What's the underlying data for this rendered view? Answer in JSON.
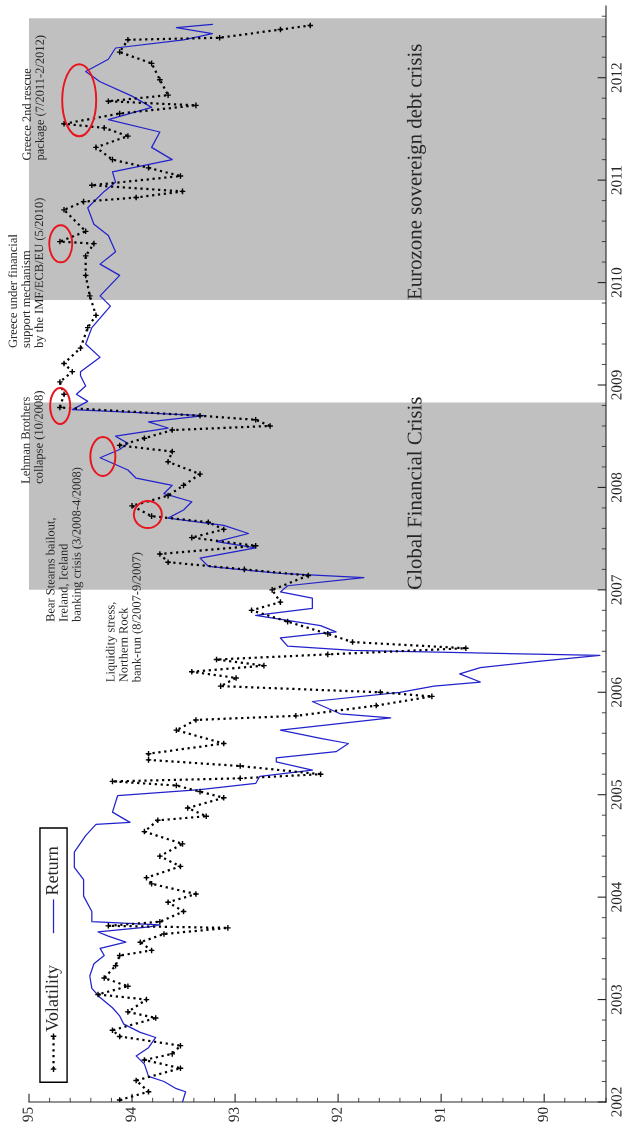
{
  "chart_data": {
    "type": "line",
    "ylim": [
      2002,
      2012.7
    ],
    "yticks": [
      2002,
      2003,
      2004,
      2005,
      2006,
      2007,
      2008,
      2009,
      2010,
      2011,
      2012
    ],
    "xlim": [
      95,
      89.4
    ],
    "xticks": [
      90,
      91,
      92,
      93,
      94,
      95
    ],
    "legend": "top left",
    "series": [
      {
        "name": "Volatility",
        "color": "#000000",
        "marker": "cross",
        "line_style": "dotted",
        "values": [
          2002.02,
          2002.1,
          2002.21,
          2002.33,
          2002.41,
          2002.47,
          2002.55,
          2002.64,
          2002.7,
          2002.82,
          2002.88,
          2003.0,
          2003.05,
          2003.13,
          2003.21,
          2003.33,
          2003.43,
          2003.48,
          2003.56,
          2003.64,
          2003.7,
          2003.72,
          2003.76,
          2003.86,
          2003.95,
          2004.03,
          2004.13,
          2004.19,
          2004.3,
          2004.4,
          2004.52,
          2004.64,
          2004.75,
          2004.79,
          2004.87,
          2004.97,
          2005.03,
          2005.09,
          2005.13,
          2005.16,
          2005.2,
          2005.28,
          2005.34,
          2005.4,
          2005.5,
          2005.63,
          2005.73,
          2005.77,
          2005.87,
          2005.96,
          2006.0,
          2006.06,
          2006.14,
          2006.2,
          2006.26,
          2006.32,
          2006.37,
          2006.43,
          2006.49,
          2006.57,
          2006.69,
          2006.8,
          2006.88,
          2007.0,
          2007.14,
          2007.2,
          2007.27,
          2007.35,
          2007.43,
          2007.51,
          2007.59,
          2007.66,
          2007.72,
          2007.82,
          2007.92,
          2008.02,
          2008.13,
          2008.25,
          2008.35,
          2008.41,
          2008.48,
          2008.56,
          2008.6,
          2008.66,
          2008.7,
          2008.78,
          2008.91,
          2009.03,
          2009.13,
          2009.21,
          2009.36,
          2009.56,
          2009.68,
          2009.87,
          2010.07,
          2010.26,
          2010.38,
          2010.4,
          2010.5,
          2010.71,
          2010.79,
          2010.83,
          2010.89,
          2010.95,
          2011.04,
          2011.12,
          2011.2,
          2011.32,
          2011.43,
          2011.51,
          2011.55,
          2011.65,
          2011.73,
          2011.77,
          2011.83,
          2011.98,
          2012.14,
          2012.25,
          2012.37,
          2012.39,
          2012.47,
          2012.51
        ],
        "x": [
          94.12,
          93.84,
          93.96,
          93.53,
          93.88,
          93.61,
          93.53,
          94.12,
          94.19,
          93.77,
          94.04,
          93.86,
          94.33,
          94.04,
          94.27,
          94.16,
          94.12,
          93.81,
          93.92,
          93.69,
          93.07,
          94.23,
          93.73,
          93.5,
          93.65,
          93.38,
          93.81,
          93.86,
          93.53,
          93.73,
          93.51,
          93.88,
          93.75,
          93.28,
          93.46,
          93.11,
          93.34,
          93.57,
          94.19,
          92.95,
          92.17,
          92.95,
          93.84,
          93.84,
          93.11,
          93.57,
          93.38,
          92.41,
          91.63,
          91.09,
          91.59,
          93.14,
          92.99,
          93.42,
          92.72,
          93.18,
          92.1,
          90.76,
          91.86,
          92.1,
          92.49,
          92.84,
          92.56,
          92.64,
          92.29,
          92.91,
          93.65,
          93.73,
          92.8,
          93.42,
          93.11,
          93.26,
          93.81,
          94.0,
          93.65,
          93.5,
          93.34,
          93.65,
          93.61,
          94.12,
          93.88,
          93.61,
          92.66,
          92.8,
          93.34,
          94.7,
          94.66,
          94.7,
          94.58,
          94.66,
          94.5,
          94.43,
          94.35,
          94.41,
          94.45,
          94.45,
          94.37,
          94.7,
          94.45,
          94.66,
          94.47,
          93.96,
          93.51,
          94.39,
          93.53,
          93.84,
          94.19,
          94.35,
          94.04,
          94.27,
          94.66,
          94.12,
          93.38,
          94.23,
          93.65,
          93.73,
          93.81,
          94.12,
          94.04,
          93.15,
          92.56,
          92.27
        ]
      },
      {
        "name": "Return",
        "color": "#2222cc",
        "line_style": "solid",
        "values": [
          2002.0,
          2002.1,
          2002.13,
          2002.2,
          2002.25,
          2002.37,
          2002.45,
          2002.53,
          2002.63,
          2002.68,
          2002.76,
          2002.84,
          2002.92,
          2003.02,
          2003.11,
          2003.23,
          2003.35,
          2003.43,
          2003.5,
          2003.56,
          2003.62,
          2003.66,
          2003.71,
          2003.73,
          2003.76,
          2003.86,
          2004.01,
          2004.17,
          2004.29,
          2004.44,
          2004.6,
          2004.71,
          2004.73,
          2004.83,
          2004.99,
          2005.05,
          2005.11,
          2005.18,
          2005.24,
          2005.32,
          2005.36,
          2005.42,
          2005.5,
          2005.55,
          2005.63,
          2005.75,
          2005.79,
          2005.91,
          2006.0,
          2006.06,
          2006.1,
          2006.18,
          2006.24,
          2006.3,
          2006.36,
          2006.41,
          2006.45,
          2006.53,
          2006.59,
          2006.65,
          2006.75,
          2006.82,
          2006.92,
          2006.98,
          2007.04,
          2007.12,
          2007.16,
          2007.23,
          2007.31,
          2007.41,
          2007.47,
          2007.55,
          2007.63,
          2007.7,
          2007.78,
          2007.86,
          2007.94,
          2008.02,
          2008.09,
          2008.17,
          2008.29,
          2008.37,
          2008.43,
          2008.5,
          2008.58,
          2008.64,
          2008.7,
          2008.76,
          2008.84,
          2008.91,
          2008.99,
          2009.09,
          2009.13,
          2009.27,
          2009.4,
          2009.56,
          2009.77,
          2009.87,
          2010.07,
          2010.18,
          2010.3,
          2010.46,
          2010.57,
          2010.73,
          2010.89,
          2010.98,
          2011.08,
          2011.2,
          2011.32,
          2011.47,
          2011.59,
          2011.71,
          2011.82,
          2011.96,
          2012.06,
          2012.18,
          2012.29,
          2012.37,
          2012.43,
          2012.49,
          2012.52
        ],
        "x": [
          93.51,
          93.48,
          93.57,
          93.69,
          93.84,
          93.88,
          93.96,
          93.84,
          93.77,
          93.92,
          94.08,
          94.12,
          94.19,
          94.31,
          94.39,
          94.41,
          94.37,
          94.27,
          94.31,
          94.06,
          94.23,
          94.33,
          93.83,
          93.73,
          94.39,
          94.39,
          94.47,
          94.47,
          94.56,
          94.56,
          94.45,
          94.35,
          94.02,
          94.19,
          94.14,
          93.34,
          92.8,
          92.76,
          92.25,
          92.6,
          92.6,
          92.02,
          91.9,
          92.17,
          92.56,
          91.49,
          91.98,
          92.25,
          91.4,
          91.07,
          90.62,
          90.82,
          90.62,
          90.08,
          89.46,
          91.86,
          92.49,
          92.56,
          92.02,
          92.17,
          92.8,
          92.25,
          92.25,
          92.56,
          92.49,
          91.75,
          92.56,
          93.26,
          93.34,
          92.8,
          93.18,
          92.87,
          93.11,
          93.65,
          93.5,
          93.42,
          93.69,
          93.61,
          93.96,
          94.04,
          94.31,
          94.12,
          94.04,
          94.16,
          93.65,
          93.84,
          93.3,
          94.58,
          94.43,
          94.54,
          94.45,
          94.5,
          94.5,
          94.31,
          94.45,
          94.39,
          94.21,
          94.31,
          94.12,
          94.31,
          94.16,
          94.23,
          94.37,
          94.43,
          94.27,
          94.16,
          94.19,
          93.61,
          93.81,
          93.73,
          94.23,
          93.81,
          94.0,
          94.31,
          94.45,
          94.23,
          94.16,
          93.5,
          93.22,
          93.57,
          93.22
        ]
      }
    ],
    "bands": [
      {
        "axis": "y",
        "from": 2007.0,
        "to": 2008.83,
        "label": "Global Financial Crisis",
        "color": "#c0c0c0"
      },
      {
        "axis": "y",
        "from": 2009.83,
        "to": 2012.58,
        "label": "Eurozone sovereign debt crisis",
        "color": "#c0c0c0"
      }
    ],
    "annotations": [
      "Liquidity stress,\nNorthern Rock\nbank-run (8/2007-9/2007)",
      "Bear Stearns bailout,\nIreland, Iceland\nbanking crisis (3/2008-4/2008)",
      "Lehman Brothers\ncollapse (10/2008)",
      "Greece under financial\nsupport mechanism\nby the IMF/ECB/EU (5/2010)",
      "Greece 2nd rescue\npackage (7/2011-2/2012)"
    ]
  }
}
